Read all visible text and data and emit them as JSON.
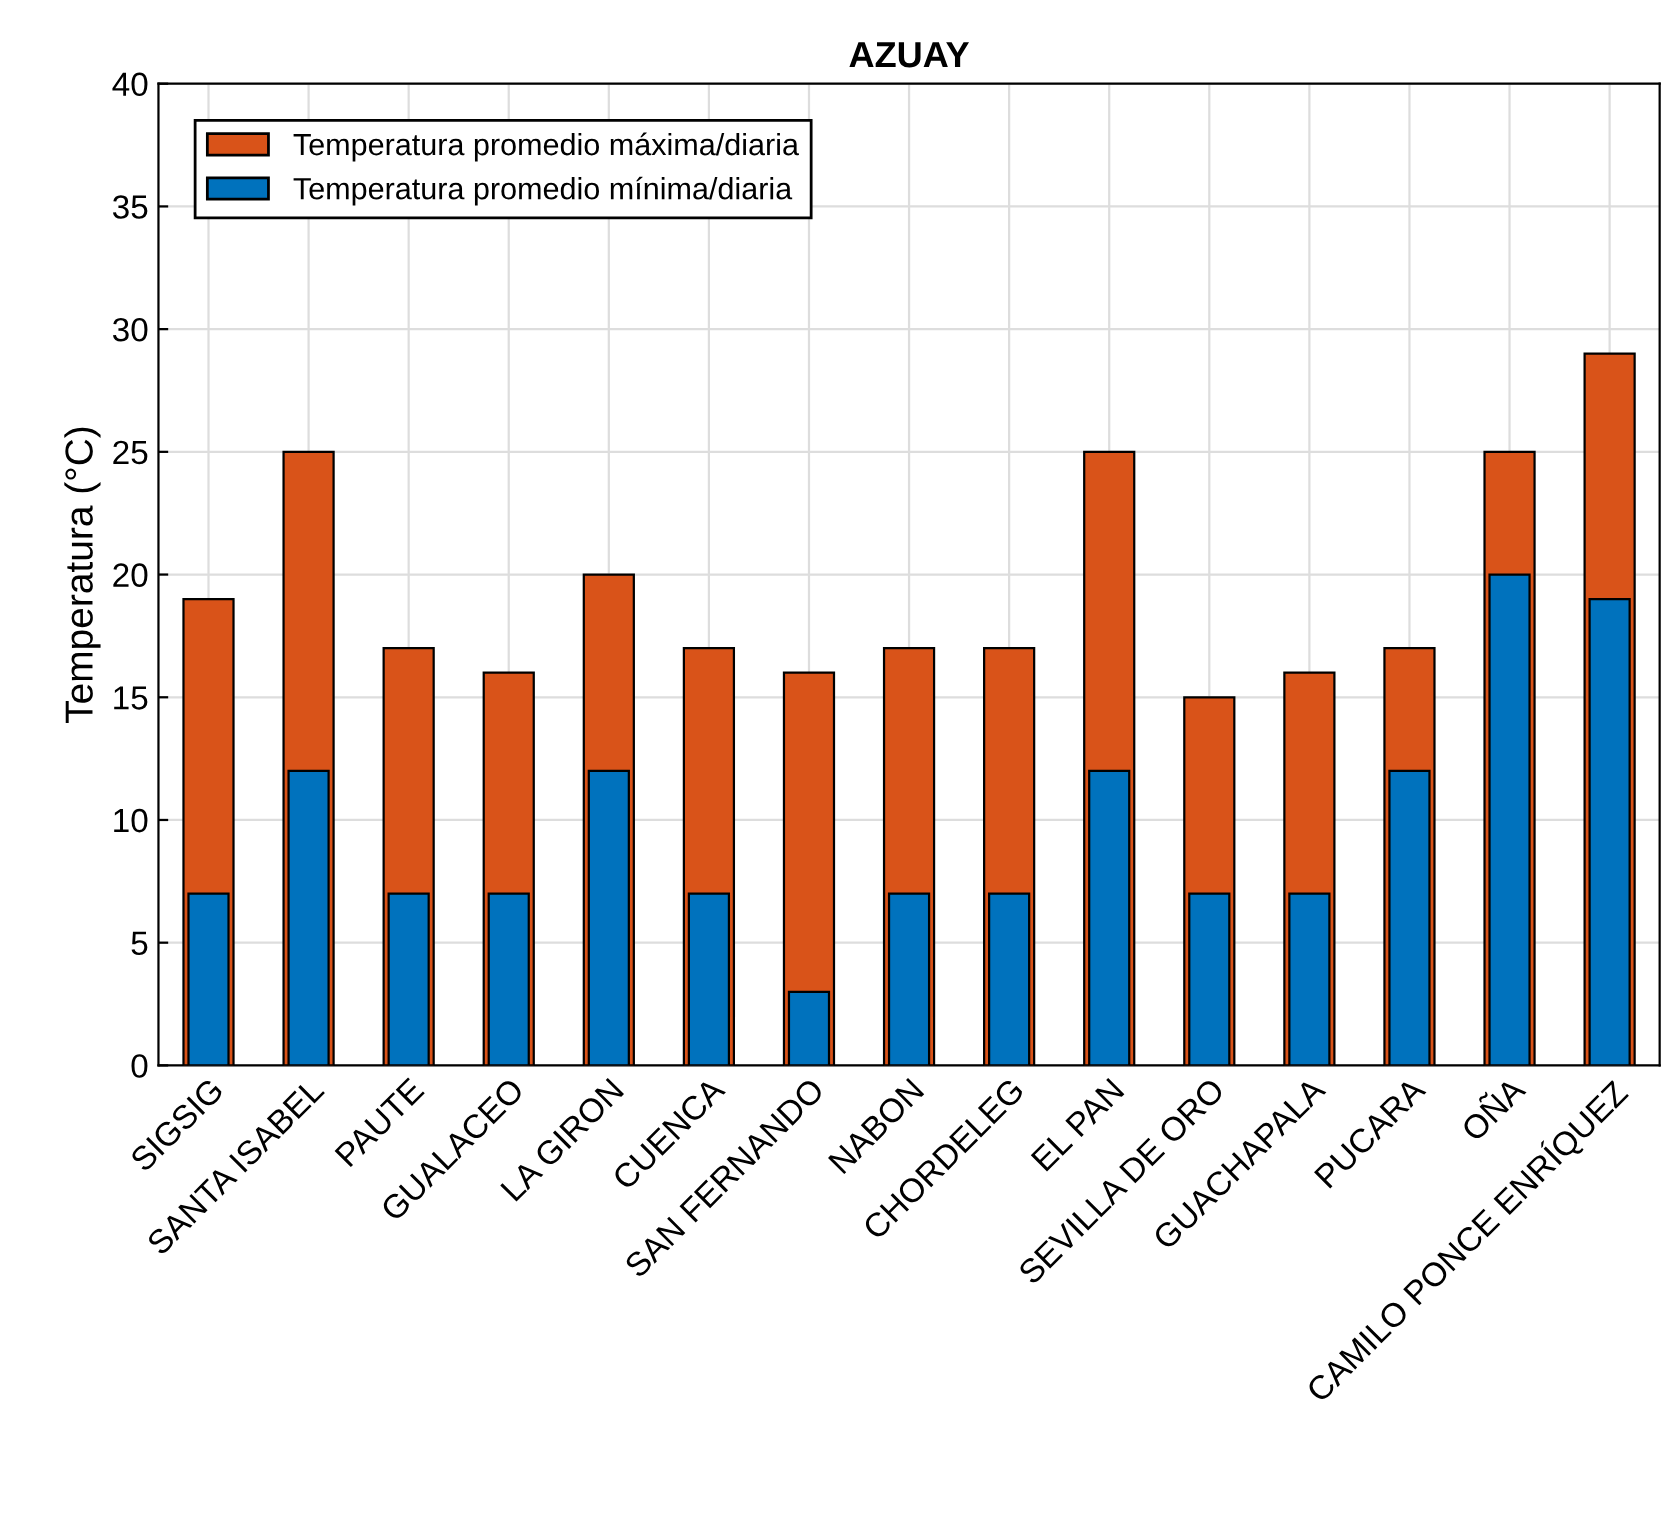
{
  "chart_data": {
    "type": "bar",
    "title": "AZUAY",
    "ylabel": "Temperatura (°C)",
    "categories": [
      "SIGSIG",
      "SANTA ISABEL",
      "PAUTE",
      "GUALACEO",
      "LA GIRON",
      "CUENCA",
      "SAN FERNANDO",
      "NABON",
      "CHORDELEG",
      "EL PAN",
      "SEVILLA DE ORO",
      "GUACHAPALA",
      "PUCARA",
      "OÑA",
      "CAMILO PONCE ENRÍQUEZ"
    ],
    "series": [
      {
        "name": "Temperatura promedio máxima/diaria",
        "color": "#d95319",
        "values": [
          19,
          25,
          17,
          16,
          20,
          17,
          16,
          17,
          17,
          25,
          15,
          16,
          17,
          25,
          29
        ]
      },
      {
        "name": "Temperatura promedio mínima/diaria",
        "color": "#0072bd",
        "values": [
          7,
          12,
          7,
          7,
          12,
          7,
          3,
          7,
          7,
          12,
          7,
          7,
          12,
          20,
          19
        ]
      }
    ],
    "ylim": [
      0,
      40
    ],
    "yticks": [
      0,
      5,
      10,
      15,
      20,
      25,
      30,
      35,
      40
    ],
    "grid": true,
    "legend": "top left"
  }
}
